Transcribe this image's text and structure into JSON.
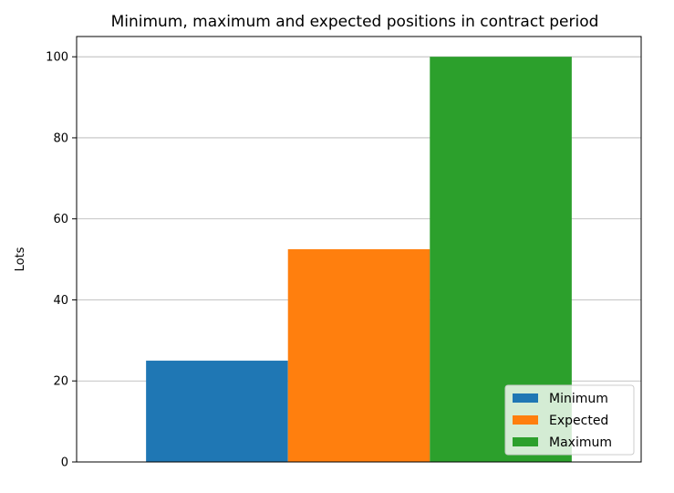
{
  "chart_data": {
    "type": "bar",
    "title": "Minimum, maximum and expected positions in contract period",
    "xlabel": "",
    "ylabel": "Lots",
    "ylim": [
      0,
      105
    ],
    "yticks": [
      0,
      20,
      40,
      60,
      80,
      100
    ],
    "grid": "horizontal",
    "legend_position": "lower-right",
    "series": [
      {
        "name": "Minimum",
        "value": 25,
        "color": "#1f77b4"
      },
      {
        "name": "Expected",
        "value": 52.5,
        "color": "#ff7f0e"
      },
      {
        "name": "Maximum",
        "value": 100,
        "color": "#2ca02c"
      }
    ]
  }
}
